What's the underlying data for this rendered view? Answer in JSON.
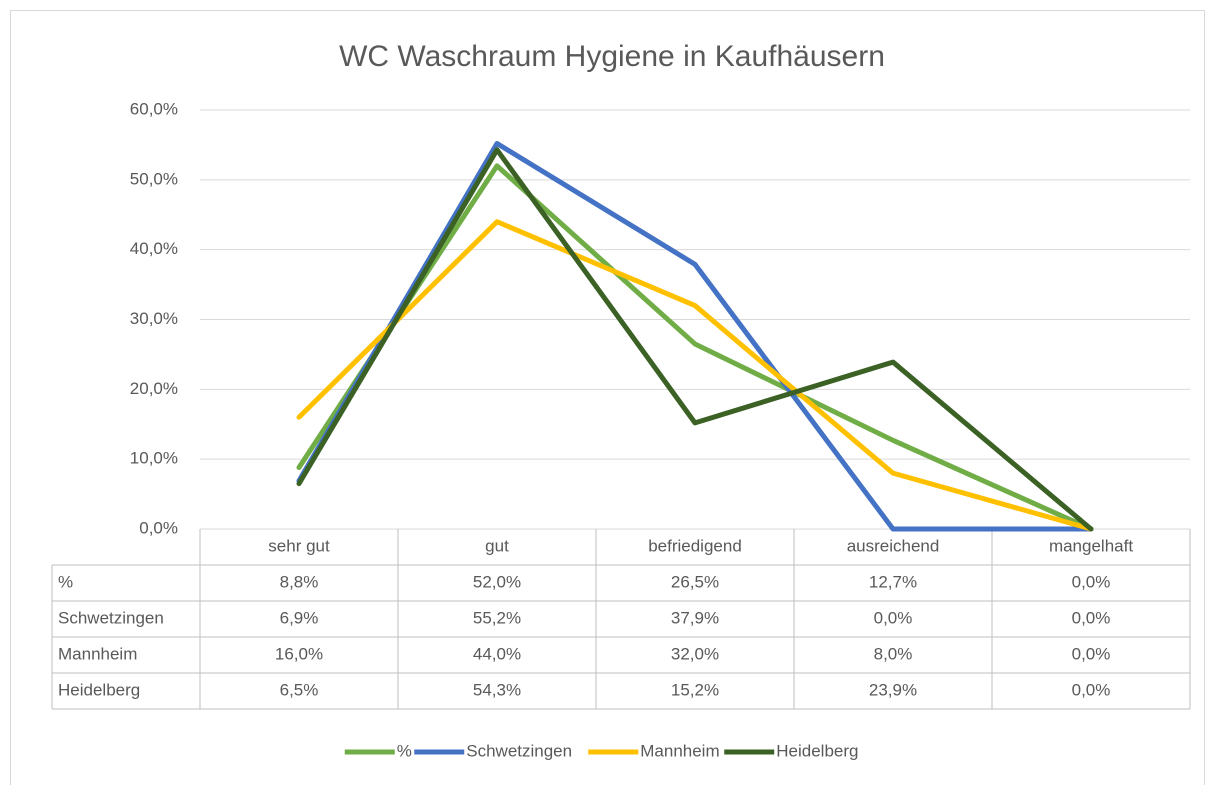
{
  "chart_data": {
    "type": "line",
    "title": "WC Waschraum Hygiene in Kaufhäusern",
    "categories": [
      "sehr gut",
      "gut",
      "befriedigend",
      "ausreichend",
      "mangelhaft"
    ],
    "series": [
      {
        "name": "%",
        "color": "#70ad47",
        "values": [
          8.8,
          52.0,
          26.5,
          12.7,
          0.0
        ],
        "value_labels": [
          "8,8%",
          "52,0%",
          "26,5%",
          "12,7%",
          "0,0%"
        ]
      },
      {
        "name": "Schwetzingen",
        "color": "#4472c4",
        "values": [
          6.9,
          55.2,
          37.9,
          0.0,
          0.0
        ],
        "value_labels": [
          "6,9%",
          "55,2%",
          "37,9%",
          "0,0%",
          "0,0%"
        ]
      },
      {
        "name": "Mannheim",
        "color": "#ffc000",
        "values": [
          16.0,
          44.0,
          32.0,
          8.0,
          0.0
        ],
        "value_labels": [
          "16,0%",
          "44,0%",
          "32,0%",
          "8,0%",
          "0,0%"
        ]
      },
      {
        "name": "Heidelberg",
        "color": "#3b6125",
        "values": [
          6.5,
          54.3,
          15.2,
          23.9,
          0.0
        ],
        "value_labels": [
          "6,5%",
          "54,3%",
          "15,2%",
          "23,9%",
          "0,0%"
        ]
      }
    ],
    "ylim": [
      0,
      60
    ],
    "yticks": [
      {
        "value": 0,
        "label": "0,0%"
      },
      {
        "value": 10,
        "label": "10,0%"
      },
      {
        "value": 20,
        "label": "20,0%"
      },
      {
        "value": 30,
        "label": "30,0%"
      },
      {
        "value": 40,
        "label": "40,0%"
      },
      {
        "value": 50,
        "label": "50,0%"
      },
      {
        "value": 60,
        "label": "60,0%"
      }
    ],
    "grid": true,
    "legend": "bottom"
  }
}
